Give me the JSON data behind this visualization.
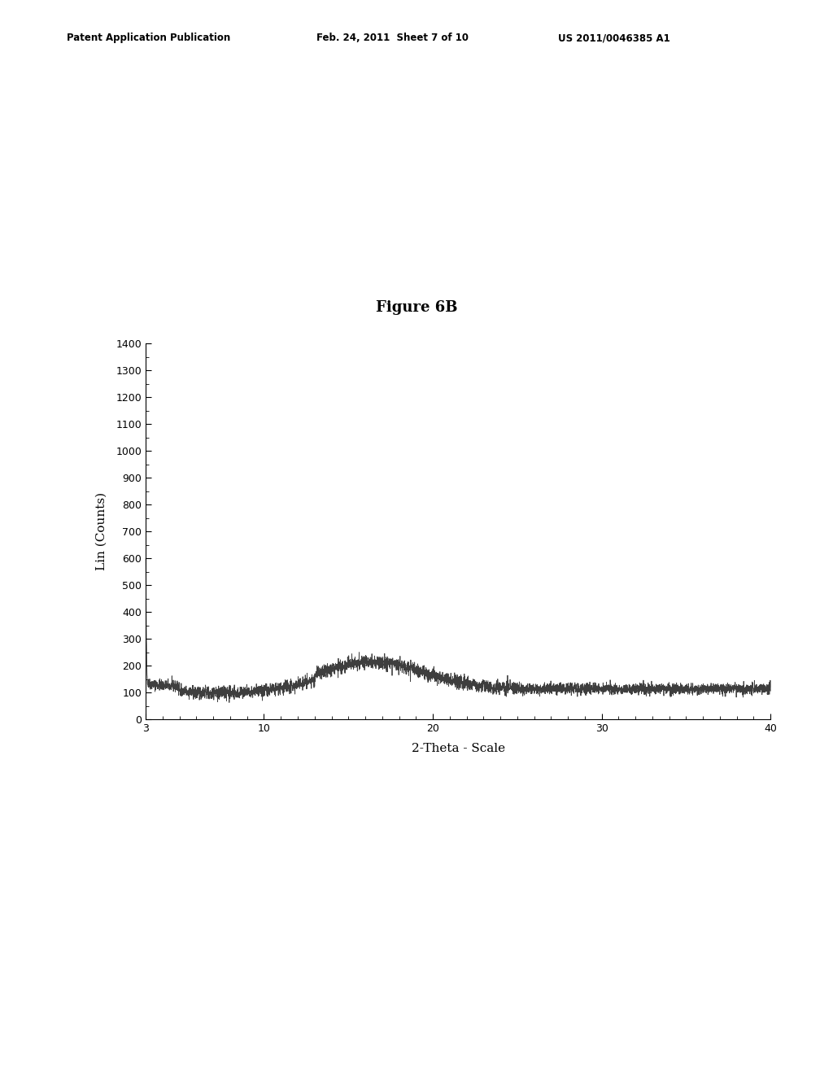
{
  "title": "Figure 6B",
  "xlabel": "2-Theta - Scale",
  "ylabel": "Lin (Counts)",
  "xlim": [
    3,
    40
  ],
  "ylim": [
    0,
    1400
  ],
  "yticks": [
    0,
    100,
    200,
    300,
    400,
    500,
    600,
    700,
    800,
    900,
    1000,
    1100,
    1200,
    1300,
    1400
  ],
  "xticks": [
    3,
    10,
    20,
    30,
    40
  ],
  "header_left": "Patent Application Publication",
  "header_mid": "Feb. 24, 2011  Sheet 7 of 10",
  "header_right": "US 2011/0046385 A1",
  "line_color": "#333333",
  "background_color": "#ffffff",
  "fig_width": 10.24,
  "fig_height": 13.2,
  "dpi": 100
}
